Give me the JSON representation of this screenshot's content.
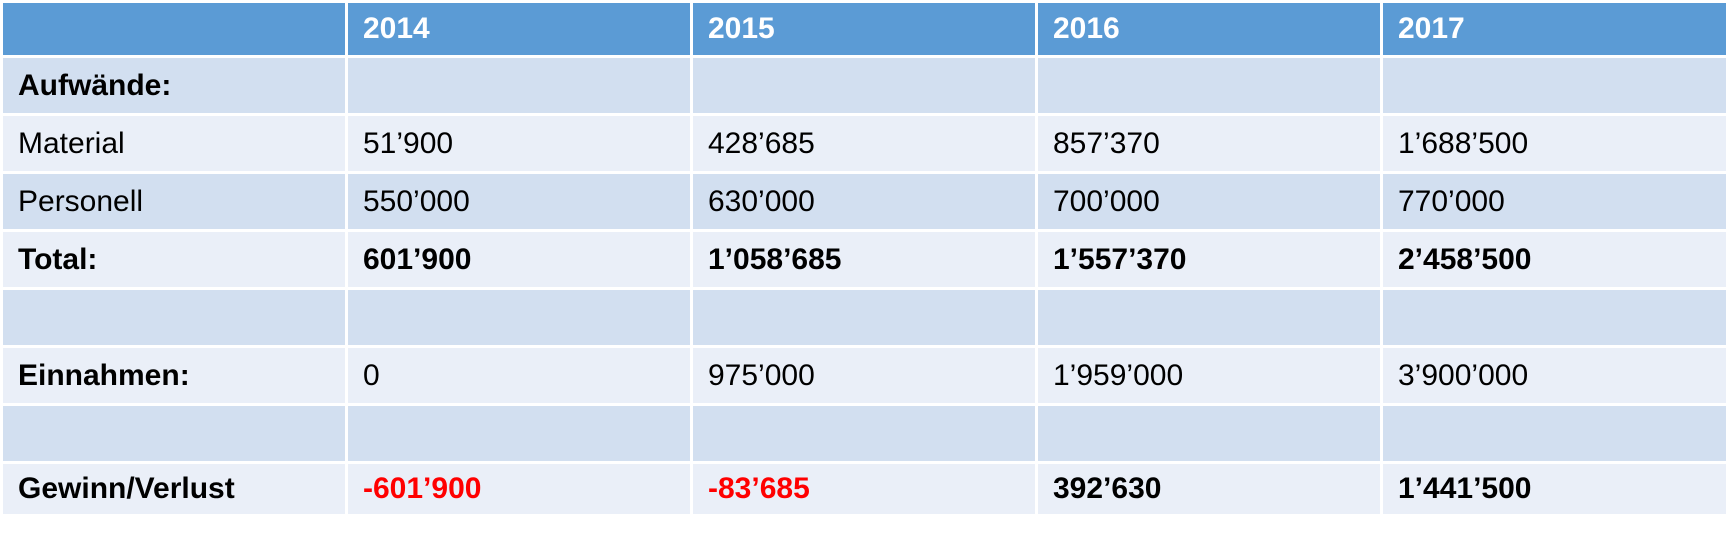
{
  "colors": {
    "header_bg": "#5b9bd5",
    "row_dark": "#d2dff0",
    "row_light": "#eaeff8",
    "negative": "#ff0000"
  },
  "header": [
    "",
    "2014",
    "2015",
    "2016",
    "2017"
  ],
  "rows": [
    {
      "label": "Aufwände:",
      "values": [
        "",
        "",
        "",
        ""
      ],
      "bold": true
    },
    {
      "label": "Material",
      "values": [
        "51’900",
        "428’685",
        "857’370",
        "1’688’500"
      ],
      "bold": false
    },
    {
      "label": "Personell",
      "values": [
        "550’000",
        "630’000",
        "700’000",
        "770’000"
      ],
      "bold": false
    },
    {
      "label": "Total:",
      "values": [
        "601’900",
        "1’058’685",
        "1’557’370",
        "2’458’500"
      ],
      "bold": true
    },
    {
      "label": "",
      "values": [
        "",
        "",
        "",
        ""
      ],
      "bold": false
    },
    {
      "label": "Einnahmen:",
      "values": [
        "0",
        "975’000",
        "1’959’000",
        "3’900’000"
      ],
      "bold": false
    },
    {
      "label": "",
      "values": [
        "",
        "",
        "",
        ""
      ],
      "bold": false
    },
    {
      "label": "Gewinn/Verlust",
      "values": [
        "-601’900",
        "-83’685",
        "392’630",
        "1’441’500"
      ],
      "bold": true
    }
  ]
}
